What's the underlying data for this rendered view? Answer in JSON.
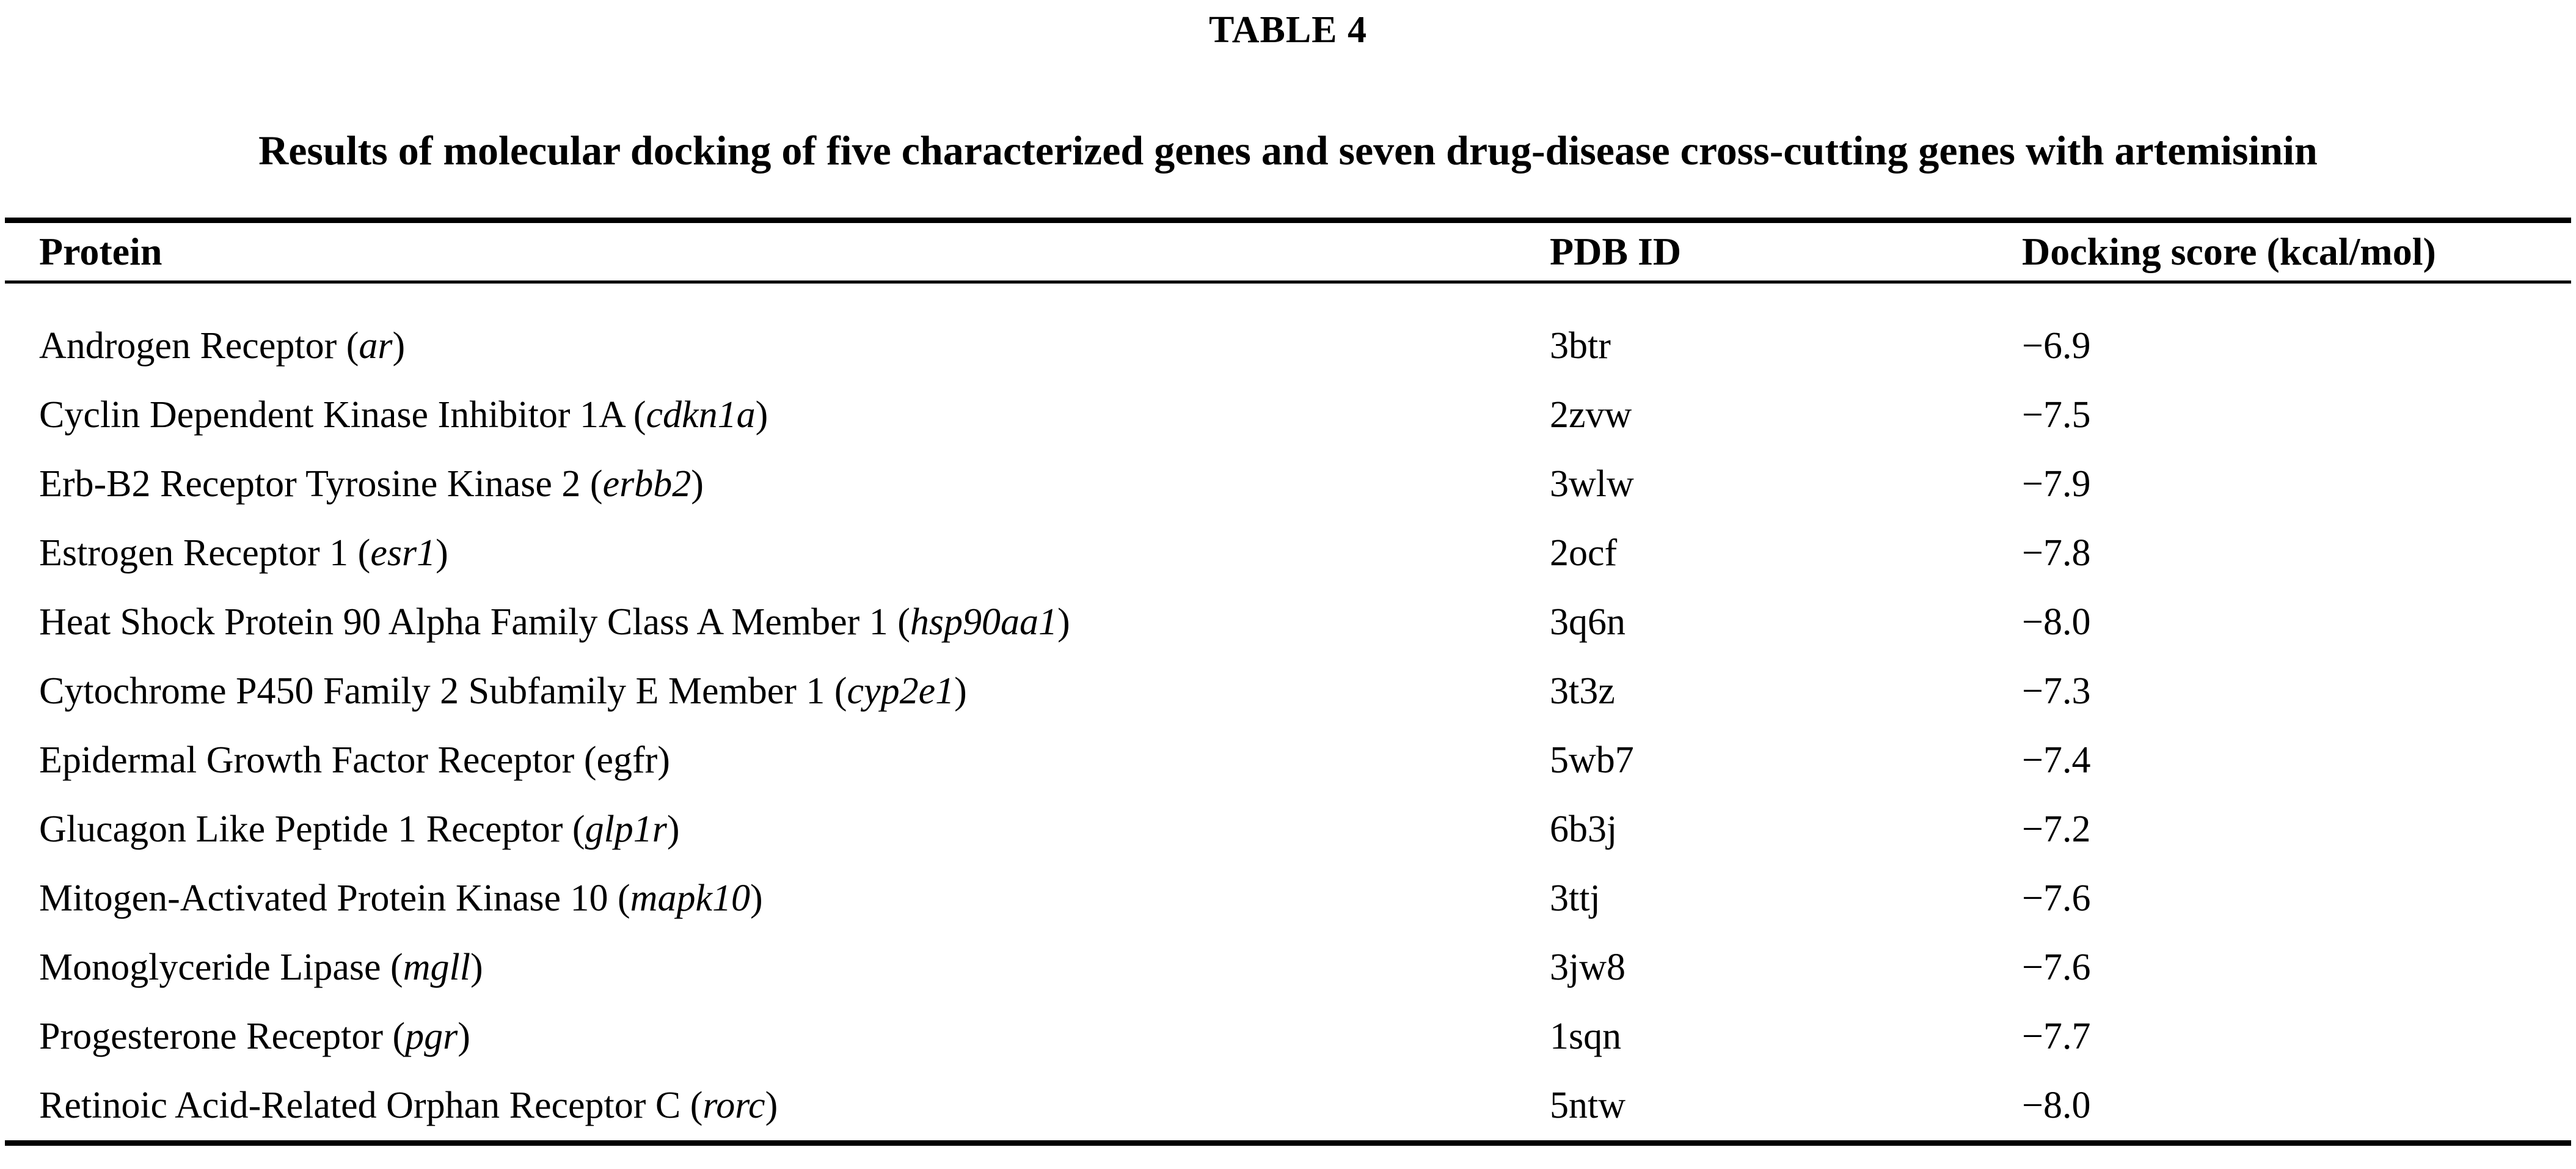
{
  "page": {
    "title": "TABLE 4",
    "subtitle": "Results of molecular docking of five characterized genes and seven drug-disease cross-cutting genes with artemisinin"
  },
  "colors": {
    "text": "#000000",
    "background": "#ffffff",
    "rule": "#000000"
  },
  "table": {
    "gene_paren_open": "(",
    "gene_paren_close": ")",
    "columns": [
      {
        "label": "Protein"
      },
      {
        "label": "PDB ID"
      },
      {
        "label": "Docking score (kcal/mol)"
      }
    ],
    "rows": [
      {
        "protein": "Androgen Receptor",
        "gene": "ar",
        "gene_italic": true,
        "pdb_id": "3btr",
        "docking_score": "−6.9"
      },
      {
        "protein": "Cyclin Dependent Kinase Inhibitor 1A",
        "gene": "cdkn1a",
        "gene_italic": true,
        "pdb_id": "2zvw",
        "docking_score": "−7.5"
      },
      {
        "protein": "Erb-B2 Receptor Tyrosine Kinase 2",
        "gene": "erbb2",
        "gene_italic": true,
        "pdb_id": "3wlw",
        "docking_score": "−7.9"
      },
      {
        "protein": "Estrogen Receptor 1",
        "gene": "esr1",
        "gene_italic": true,
        "pdb_id": "2ocf",
        "docking_score": "−7.8"
      },
      {
        "protein": "Heat Shock Protein 90 Alpha Family Class A Member 1",
        "gene": "hsp90aa1",
        "gene_italic": true,
        "pdb_id": "3q6n",
        "docking_score": "−8.0"
      },
      {
        "protein": "Cytochrome P450 Family 2 Subfamily E Member 1",
        "gene": "cyp2e1",
        "gene_italic": true,
        "pdb_id": "3t3z",
        "docking_score": "−7.3"
      },
      {
        "protein": "Epidermal Growth Factor Receptor",
        "gene": "egfr",
        "gene_italic": false,
        "pdb_id": "5wb7",
        "docking_score": "−7.4"
      },
      {
        "protein": "Glucagon Like Peptide 1 Receptor",
        "gene": "glp1r",
        "gene_italic": true,
        "pdb_id": "6b3j",
        "docking_score": "−7.2"
      },
      {
        "protein": "Mitogen-Activated Protein Kinase 10",
        "gene": "mapk10",
        "gene_italic": true,
        "pdb_id": "3ttj",
        "docking_score": "−7.6"
      },
      {
        "protein": "Monoglyceride Lipase",
        "gene": "mgll",
        "gene_italic": true,
        "pdb_id": "3jw8",
        "docking_score": "−7.6"
      },
      {
        "protein": "Progesterone Receptor",
        "gene": "pgr",
        "gene_italic": true,
        "pdb_id": "1sqn",
        "docking_score": "−7.7"
      },
      {
        "protein": "Retinoic Acid-Related Orphan Receptor C",
        "gene": "rorc",
        "gene_italic": true,
        "pdb_id": "5ntw",
        "docking_score": "−8.0"
      }
    ]
  }
}
